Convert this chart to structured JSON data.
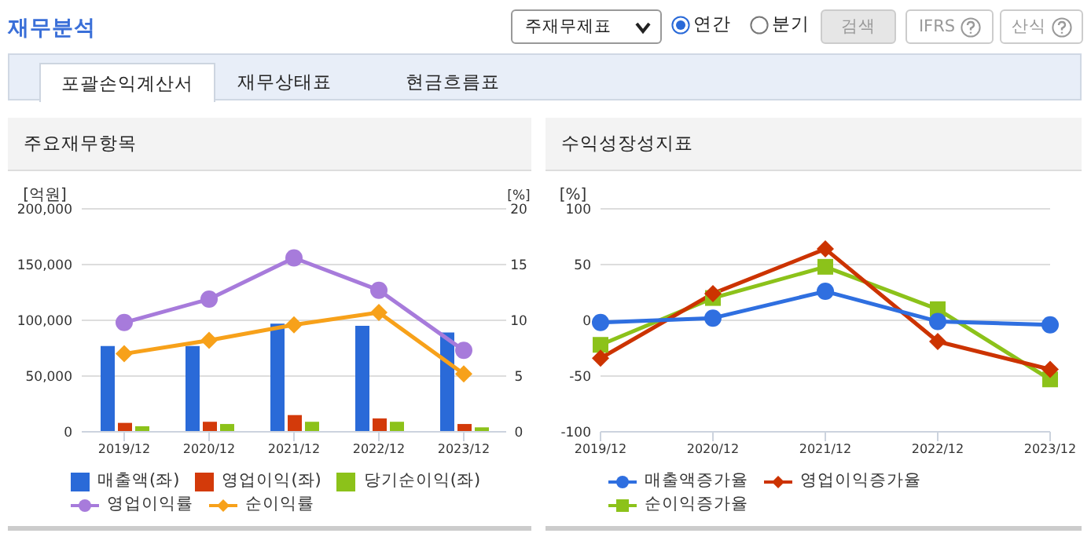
{
  "chart_data": [
    {
      "type": "other",
      "title": "재무분석",
      "annotations": [
        "주재무제표",
        "연간",
        "분기",
        "검색",
        "IFRS",
        "산식",
        "포괄손익계산서",
        "재무상태표",
        "현금흐름표"
      ]
    },
    {
      "type": "bar",
      "title": "주요재무항목",
      "categories": [
        "2019/12",
        "2020/12",
        "2021/12",
        "2022/12",
        "2023/12"
      ],
      "ylabel": "[억원]",
      "y2label": "[%]",
      "ylim": [
        0,
        200000
      ],
      "yticks": [
        {
          "value": 0,
          "label": "0"
        },
        {
          "value": 50000,
          "label": "50,000"
        },
        {
          "value": 100000,
          "label": "100,000"
        },
        {
          "value": 150000,
          "label": "150,000"
        },
        {
          "value": 200000,
          "label": "200,000"
        }
      ],
      "y2lim": [
        0,
        20
      ],
      "y2ticks": [
        0,
        5,
        10,
        15,
        20
      ],
      "grid": "y",
      "legend": "bottom",
      "series": [
        {
          "name": "매출액(좌)",
          "type": "bar",
          "color": "#2a6ad8",
          "values": [
            77000,
            77000,
            97000,
            95000,
            89000
          ]
        },
        {
          "name": "영업이익(좌)",
          "type": "bar",
          "color": "#d33a0a",
          "values": [
            8000,
            9000,
            15000,
            12000,
            7000
          ]
        },
        {
          "name": "당기순이익(좌)",
          "type": "bar",
          "color": "#8cc21a",
          "values": [
            5000,
            7000,
            9000,
            9000,
            4000
          ]
        },
        {
          "name": "영업이익률",
          "type": "line",
          "axis": "y2",
          "color": "#a77bdb",
          "marker": "circle",
          "values": [
            9.8,
            11.9,
            15.6,
            12.7,
            7.3
          ]
        },
        {
          "name": "순이익률",
          "type": "line",
          "axis": "y2",
          "color": "#f7a11a",
          "marker": "diamond",
          "values": [
            7.0,
            8.2,
            9.6,
            10.7,
            5.2
          ]
        }
      ]
    },
    {
      "type": "line",
      "title": "수익성장성지표",
      "categories": [
        "2019/12",
        "2020/12",
        "2021/12",
        "2022/12",
        "2023/12"
      ],
      "ylabel": "[%]",
      "ylim": [
        -100,
        100
      ],
      "yticks": [
        -100,
        -50,
        0,
        50,
        100
      ],
      "grid": "y",
      "legend": "bottom",
      "series": [
        {
          "name": "매출액증가율",
          "color": "#2f6fe0",
          "marker": "circle",
          "values": [
            -2,
            2,
            26,
            -1,
            -4
          ]
        },
        {
          "name": "영업이익증가율",
          "color": "#cc3300",
          "marker": "diamond",
          "values": [
            -34,
            24,
            64,
            -19,
            -44
          ]
        },
        {
          "name": "순이익증가율",
          "color": "#8cc21a",
          "marker": "square",
          "values": [
            -22,
            20,
            48,
            10,
            -53
          ]
        }
      ]
    }
  ]
}
